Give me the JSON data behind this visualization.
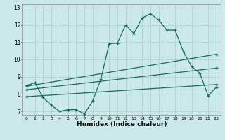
{
  "title": "",
  "xlabel": "Humidex (Indice chaleur)",
  "xlim": [
    -0.5,
    23.5
  ],
  "ylim": [
    6.8,
    13.2
  ],
  "yticks": [
    7,
    8,
    9,
    10,
    11,
    12,
    13
  ],
  "xticks": [
    0,
    1,
    2,
    3,
    4,
    5,
    6,
    7,
    8,
    9,
    10,
    11,
    12,
    13,
    14,
    15,
    16,
    17,
    18,
    19,
    20,
    21,
    22,
    23
  ],
  "bg_color": "#cce9e9",
  "grid_color": "#afd4d4",
  "line_color": "#1a6b5a",
  "line1_x": [
    0,
    1,
    2,
    3,
    4,
    5,
    6,
    7,
    8,
    9,
    10,
    11,
    12,
    13,
    14,
    15,
    16,
    17,
    18,
    19,
    20,
    21,
    22,
    23
  ],
  "line1_y": [
    8.5,
    8.65,
    7.8,
    7.35,
    7.0,
    7.1,
    7.1,
    6.85,
    7.6,
    8.85,
    10.9,
    10.95,
    12.0,
    11.5,
    12.4,
    12.65,
    12.3,
    11.7,
    11.7,
    10.45,
    9.6,
    9.2,
    7.9,
    8.4
  ],
  "line2_x": [
    0,
    23
  ],
  "line2_y": [
    8.45,
    10.3
  ],
  "line3_x": [
    0,
    23
  ],
  "line3_y": [
    8.25,
    9.5
  ],
  "line4_x": [
    0,
    23
  ],
  "line4_y": [
    7.85,
    8.55
  ]
}
